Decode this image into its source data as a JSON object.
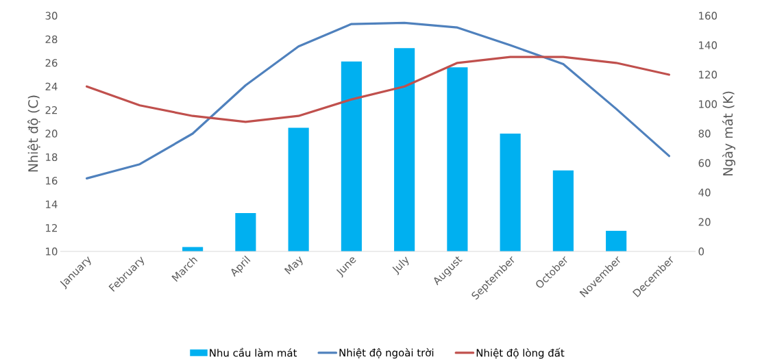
{
  "chart_data": {
    "type": "bar",
    "categories": [
      "January",
      "February",
      "March",
      "April",
      "May",
      "June",
      "July",
      "August",
      "September",
      "October",
      "November",
      "December"
    ],
    "ylabel": "Nhiệt độ (C)",
    "y2label": "Ngày mát (K)",
    "ylim": [
      10,
      30
    ],
    "yticks": [
      10,
      12,
      14,
      16,
      18,
      20,
      22,
      24,
      26,
      28,
      30
    ],
    "y2lim": [
      0,
      160
    ],
    "y2ticks": [
      0,
      20,
      40,
      60,
      80,
      100,
      120,
      140,
      160
    ],
    "legend": "bottom",
    "series": [
      {
        "name": "Nhu cầu làm mát",
        "axis": "y2",
        "color": "#00b0f0",
        "values": [
          0,
          0,
          3,
          26,
          84,
          129,
          138,
          125,
          80,
          55,
          14,
          0
        ]
      },
      {
        "name": "Nhiệt độ ngoài trời",
        "type": "line",
        "color": "#4f81bd",
        "values": [
          16.2,
          17.4,
          20.0,
          24.1,
          27.4,
          29.3,
          29.4,
          29.0,
          27.5,
          25.9,
          22.1,
          18.1
        ]
      },
      {
        "name": "Nhiệt độ lòng đất",
        "type": "line",
        "color": "#c0504d",
        "values": [
          24.0,
          22.4,
          21.5,
          21.0,
          21.5,
          22.9,
          24.0,
          26.0,
          26.5,
          26.5,
          26.0,
          25.0
        ]
      }
    ]
  }
}
